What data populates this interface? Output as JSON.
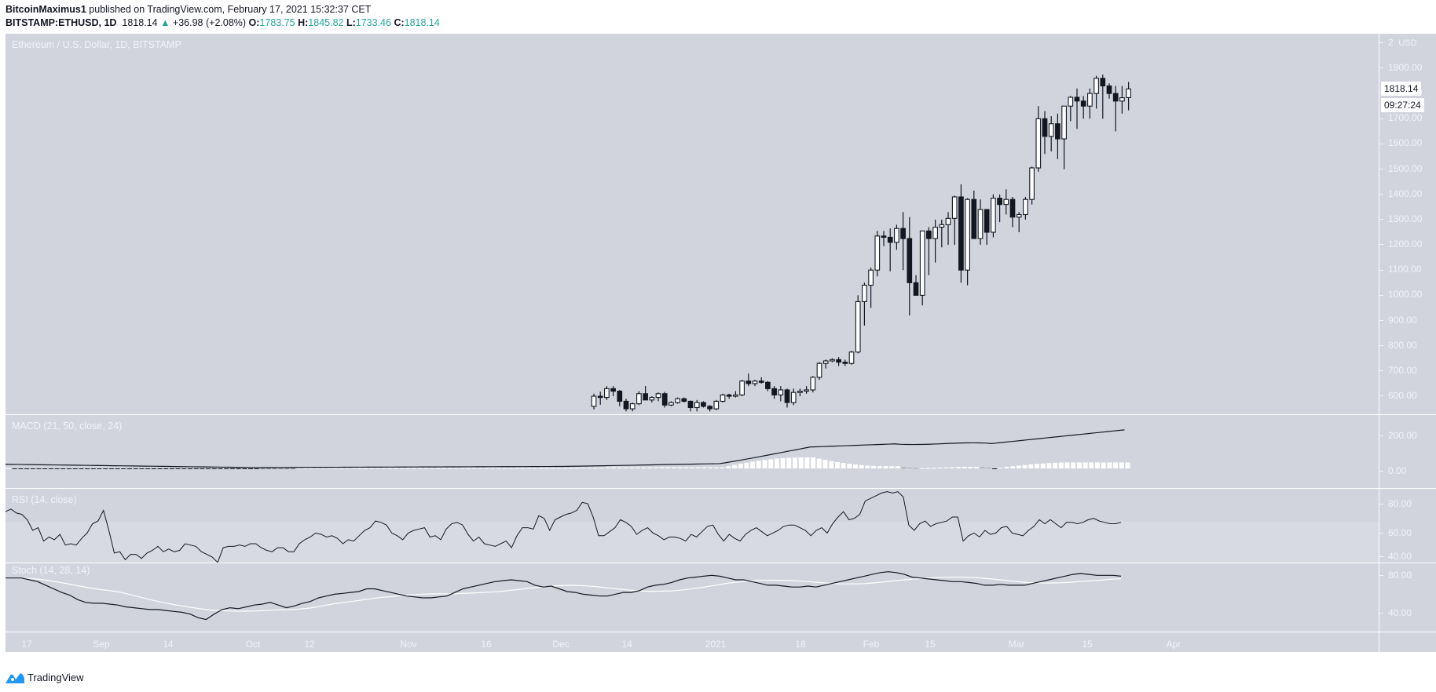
{
  "header": {
    "author": "BitcoinMaximus1",
    "published_text": "published on TradingView.com, February 17, 2021 15:32:37 CET",
    "symbol": "BITSTAMP:ETHUSD, 1D",
    "last_price": "1818.14",
    "change": "+36.98 (+2.08%)",
    "o_label": "O:",
    "open": "1783.75",
    "h_label": "H:",
    "high": "1845.82",
    "l_label": "L:",
    "low": "1733.46",
    "c_label": "C:",
    "close": "1818.14",
    "up_color": "#26a69a"
  },
  "panes": {
    "price_title": "Ethereum / U.S. Dollar, 1D, BITSTAMP",
    "macd_title": "MACD (21, 50, close, 24)",
    "rsi_title": "RSI (14, close)",
    "stoch_title": "Stoch (14, 28, 14)"
  },
  "price_axis": {
    "currency": "USD",
    "top_partial": "2",
    "last_price_label": "1818.14",
    "countdown_label": "09:27:24"
  },
  "footer": {
    "brand": "TradingView"
  },
  "chart_data": [
    {
      "type": "candlestick",
      "title": "Ethereum / U.S. Dollar, 1D, BITSTAMP",
      "ylabel": "USD",
      "ylim": [
        560,
        1960
      ],
      "yticks": [
        "1900.00",
        "1800.00",
        "1700.00",
        "1600.00",
        "1500.00",
        "1400.00",
        "1300.00",
        "1200.00",
        "1100.00",
        "1000.00",
        "900.00",
        "800.00",
        "700.00",
        "600.00"
      ],
      "xticks": [
        "17",
        "Sep",
        "14",
        "Oct",
        "12",
        "Nov",
        "16",
        "Dec",
        "14",
        "2021",
        "18",
        "Feb",
        "15",
        "Mar",
        "15",
        "Apr"
      ],
      "last": {
        "open": 1783.75,
        "high": 1845.82,
        "low": 1733.46,
        "close": 1818.14
      },
      "candles": [
        [
          560,
          610,
          548,
          600
        ],
        [
          600,
          618,
          566,
          595
        ],
        [
          595,
          640,
          585,
          630
        ],
        [
          630,
          640,
          600,
          620
        ],
        [
          620,
          625,
          560,
          580
        ],
        [
          580,
          590,
          540,
          550
        ],
        [
          550,
          575,
          540,
          570
        ],
        [
          570,
          620,
          565,
          610
        ],
        [
          610,
          640,
          595,
          585
        ],
        [
          585,
          600,
          575,
          595
        ],
        [
          595,
          615,
          580,
          610
        ],
        [
          610,
          617,
          555,
          565
        ],
        [
          565,
          580,
          560,
          575
        ],
        [
          575,
          595,
          570,
          590
        ],
        [
          590,
          595,
          575,
          580
        ],
        [
          580,
          583,
          540,
          555
        ],
        [
          555,
          585,
          540,
          575
        ],
        [
          575,
          580,
          555,
          560
        ],
        [
          560,
          565,
          540,
          550
        ],
        [
          550,
          585,
          545,
          580
        ],
        [
          580,
          610,
          575,
          605
        ],
        [
          605,
          610,
          590,
          600
        ],
        [
          600,
          620,
          595,
          605
        ],
        [
          605,
          665,
          600,
          660
        ],
        [
          660,
          690,
          640,
          650
        ],
        [
          650,
          665,
          640,
          660
        ],
        [
          660,
          675,
          650,
          655
        ],
        [
          655,
          660,
          620,
          630
        ],
        [
          630,
          640,
          590,
          605
        ],
        [
          605,
          640,
          580,
          625
        ],
        [
          625,
          630,
          555,
          575
        ],
        [
          575,
          630,
          565,
          615
        ],
        [
          615,
          630,
          600,
          620
        ],
        [
          620,
          640,
          610,
          625
        ],
        [
          625,
          680,
          615,
          675
        ],
        [
          675,
          735,
          665,
          730
        ],
        [
          730,
          745,
          710,
          740
        ],
        [
          740,
          750,
          735,
          745
        ],
        [
          745,
          755,
          720,
          735
        ],
        [
          735,
          745,
          720,
          730
        ],
        [
          730,
          780,
          725,
          775
        ],
        [
          775,
          1000,
          770,
          975
        ],
        [
          975,
          1050,
          880,
          1040
        ],
        [
          1040,
          1110,
          950,
          1100
        ],
        [
          1100,
          1255,
          1075,
          1235
        ],
        [
          1235,
          1255,
          1195,
          1230
        ],
        [
          1230,
          1265,
          1095,
          1210
        ],
        [
          1210,
          1280,
          1180,
          1265
        ],
        [
          1265,
          1330,
          1100,
          1225
        ],
        [
          1225,
          1310,
          920,
          1050
        ],
        [
          1050,
          1080,
          1000,
          1000
        ],
        [
          1000,
          1250,
          960,
          1255
        ],
        [
          1255,
          1270,
          1080,
          1225
        ],
        [
          1225,
          1300,
          1130,
          1270
        ],
        [
          1270,
          1300,
          1190,
          1280
        ],
        [
          1280,
          1330,
          1200,
          1305
        ],
        [
          1305,
          1395,
          1200,
          1390
        ],
        [
          1390,
          1440,
          1050,
          1100
        ],
        [
          1100,
          1385,
          1040,
          1380
        ],
        [
          1380,
          1415,
          1240,
          1225
        ],
        [
          1225,
          1380,
          1200,
          1340
        ],
        [
          1340,
          1330,
          1200,
          1250
        ],
        [
          1250,
          1400,
          1230,
          1385
        ],
        [
          1385,
          1400,
          1290,
          1360
        ],
        [
          1360,
          1420,
          1320,
          1380
        ],
        [
          1380,
          1390,
          1270,
          1310
        ],
        [
          1310,
          1330,
          1250,
          1320
        ],
        [
          1320,
          1390,
          1300,
          1380
        ],
        [
          1380,
          1510,
          1360,
          1505
        ],
        [
          1505,
          1750,
          1490,
          1700
        ],
        [
          1700,
          1730,
          1560,
          1630
        ],
        [
          1630,
          1710,
          1570,
          1680
        ],
        [
          1680,
          1720,
          1540,
          1620
        ],
        [
          1620,
          1750,
          1500,
          1750
        ],
        [
          1750,
          1790,
          1690,
          1785
        ],
        [
          1785,
          1820,
          1660,
          1770
        ],
        [
          1770,
          1790,
          1700,
          1750
        ],
        [
          1750,
          1820,
          1700,
          1800
        ],
        [
          1800,
          1870,
          1740,
          1860
        ],
        [
          1860,
          1875,
          1700,
          1830
        ],
        [
          1830,
          1840,
          1780,
          1800
        ],
        [
          1800,
          1830,
          1650,
          1770
        ],
        [
          1770,
          1830,
          1720,
          1783
        ],
        [
          1783.75,
          1845.82,
          1733.46,
          1818.14
        ]
      ]
    },
    {
      "type": "line+bar",
      "title": "MACD (21, 50, close, 24)",
      "yticks": [
        "200.00",
        "0.00"
      ],
      "description": "MACD line flat near 0 Aug–Dec, rising to ~150 early Jan, ~230 by mid-Feb; histogram peaks ~75 in early Jan"
    },
    {
      "type": "line",
      "title": "RSI (14, close)",
      "yticks": [
        "80.00",
        "60.00",
        "40.00"
      ],
      "band": [
        30,
        70
      ],
      "description": "RSI ~75 mid-Aug, dips to ~38 mid-Sep, 80+ late Nov, peaks ~90 early Jan, ends ~66"
    },
    {
      "type": "line",
      "title": "Stoch (14, 28, 14)",
      "yticks": [
        "80.00",
        "40.00"
      ],
      "series": [
        {
          "name": "%K",
          "color": "#131722"
        },
        {
          "name": "%D",
          "color": "#ffffff"
        }
      ]
    }
  ]
}
